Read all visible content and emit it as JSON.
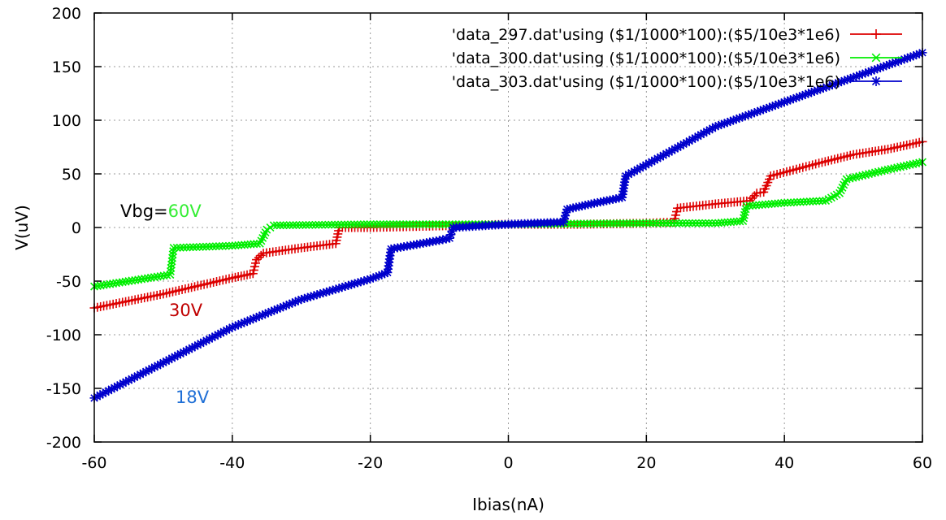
{
  "chart_data": {
    "type": "scatter",
    "xlabel": "Ibias(nA)",
    "ylabel": "V(uV)",
    "xlim": [
      -60,
      60
    ],
    "ylim": [
      -200,
      200
    ],
    "x_ticks": [
      -60,
      -40,
      -20,
      0,
      20,
      40,
      60
    ],
    "y_ticks": [
      -200,
      -150,
      -100,
      -50,
      0,
      50,
      100,
      150,
      200
    ],
    "grid": true,
    "legend_position": "top-right",
    "series": [
      {
        "name": "'data_297.dat'using ($1/1000*100):($5/10e3*1e6)",
        "color": "#dd0000",
        "marker": "plus",
        "points": [
          [
            -60,
            -75
          ],
          [
            -50,
            -62
          ],
          [
            -40,
            -47
          ],
          [
            -37,
            -43
          ],
          [
            -36.5,
            -30
          ],
          [
            -35.5,
            -24
          ],
          [
            -30,
            -19
          ],
          [
            -25,
            -15
          ],
          [
            -24.5,
            0
          ],
          [
            -20,
            0
          ],
          [
            0,
            3
          ],
          [
            10,
            3
          ],
          [
            20,
            4
          ],
          [
            24,
            5
          ],
          [
            24.5,
            18
          ],
          [
            30,
            22
          ],
          [
            35,
            25
          ],
          [
            36,
            32
          ],
          [
            37,
            33
          ],
          [
            38,
            48
          ],
          [
            45,
            60
          ],
          [
            50,
            68
          ],
          [
            55,
            73
          ],
          [
            60,
            80
          ]
        ]
      },
      {
        "name": "'data_300.dat'using ($1/1000*100):($5/10e3*1e6)",
        "color": "#00ee00",
        "marker": "cross",
        "points": [
          [
            -60,
            -55
          ],
          [
            -55,
            -50
          ],
          [
            -49,
            -44
          ],
          [
            -48.5,
            -19
          ],
          [
            -40,
            -17
          ],
          [
            -36,
            -15
          ],
          [
            -35,
            -2
          ],
          [
            -34,
            2
          ],
          [
            -20,
            3
          ],
          [
            0,
            3
          ],
          [
            20,
            4
          ],
          [
            30,
            4
          ],
          [
            34,
            6
          ],
          [
            34.5,
            20
          ],
          [
            40,
            23
          ],
          [
            46,
            25
          ],
          [
            48,
            32
          ],
          [
            49,
            45
          ],
          [
            55,
            54
          ],
          [
            60,
            61
          ]
        ]
      },
      {
        "name": "'data_303.dat'using ($1/1000*100):($5/10e3*1e6)",
        "color": "#0000cc",
        "marker": "star",
        "points": [
          [
            -60,
            -159
          ],
          [
            -50,
            -126
          ],
          [
            -40,
            -93
          ],
          [
            -30,
            -67
          ],
          [
            -20,
            -48
          ],
          [
            -17.5,
            -42
          ],
          [
            -17,
            -20
          ],
          [
            -10,
            -12
          ],
          [
            -8.5,
            -10
          ],
          [
            -8,
            0
          ],
          [
            0,
            3
          ],
          [
            8,
            5
          ],
          [
            8.5,
            17
          ],
          [
            12,
            22
          ],
          [
            16.5,
            28
          ],
          [
            17,
            48
          ],
          [
            30,
            94
          ],
          [
            40,
            117
          ],
          [
            50,
            140
          ],
          [
            60,
            163
          ]
        ]
      }
    ],
    "annotations": [
      {
        "parts": [
          {
            "text": "Vbg=",
            "color": "#000000"
          },
          {
            "text": "60V",
            "color": "#33ee33"
          }
        ]
      },
      {
        "parts": [
          {
            "text": "30V",
            "color": "#c00000"
          }
        ]
      },
      {
        "parts": [
          {
            "text": "18V",
            "color": "#1f6fd6"
          }
        ]
      }
    ]
  }
}
